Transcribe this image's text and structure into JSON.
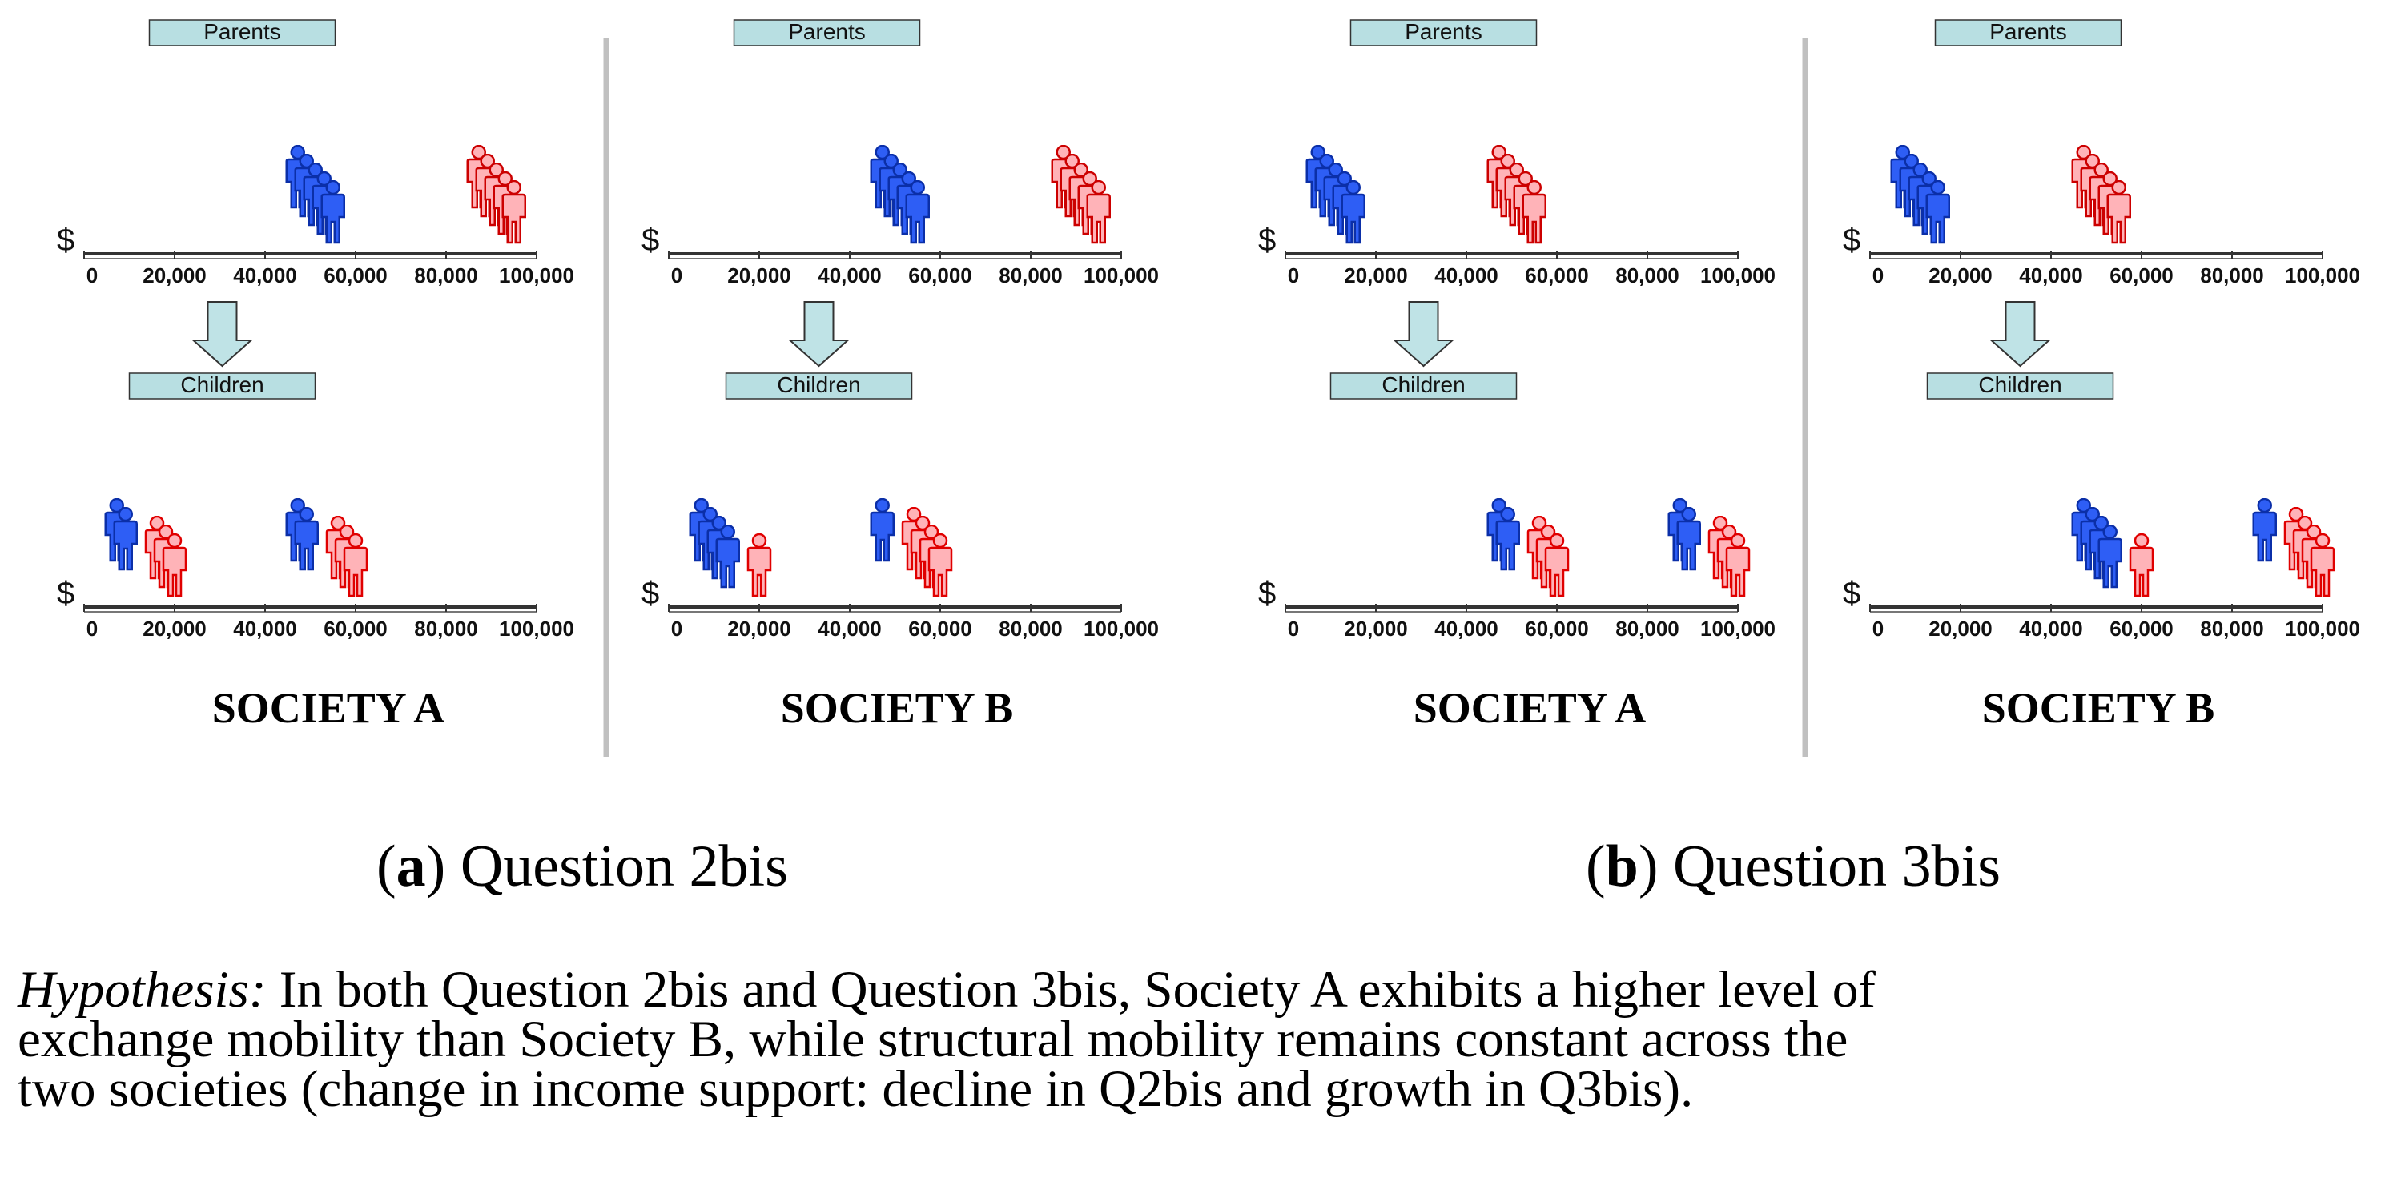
{
  "colors": {
    "parents_blue": "#1d4be6",
    "parents_blue_light": "#2e5ef5",
    "red": "#ff2a2a",
    "red_light": "#ffb3b8",
    "label_box_fill": "#b8dfe2",
    "arrow_fill": "#bfe3e6",
    "divider": "#c0c0c0"
  },
  "labels": {
    "parents": "Parents",
    "children": "Children",
    "currency": "$"
  },
  "axis_ticks": [
    "0",
    "20,000",
    "40,000",
    "60,000",
    "80,000",
    "100,000"
  ],
  "figures_per_group": 5,
  "icon_names": [
    "person-icon",
    "down-arrow-icon"
  ],
  "panels": [
    {
      "title": "SOCIETY  A",
      "parents": [
        {
          "color": "blue",
          "income": 55000
        },
        {
          "color": "red",
          "income": 95000
        }
      ],
      "children": [
        {
          "color": "blue",
          "income": 15000,
          "overlay_red": 3,
          "overlay_income": 20000
        },
        {
          "color": "blue",
          "income": 55000,
          "overlay_red": 3,
          "overlay_income": 60000
        }
      ]
    },
    {
      "title": "SOCIETY B",
      "parents": [
        {
          "color": "blue",
          "income": 55000
        },
        {
          "color": "red",
          "income": 95000
        }
      ],
      "children": [
        {
          "color": "blue",
          "income": 15000,
          "overlay_red": 1,
          "overlay_income": 20000
        },
        {
          "color": "blue",
          "income": 55000,
          "overlay_red": 4,
          "overlay_income": 60000
        }
      ]
    },
    {
      "title": "SOCIETY  A",
      "parents": [
        {
          "color": "blue",
          "income": 15000
        },
        {
          "color": "red",
          "income": 55000
        }
      ],
      "children": [
        {
          "color": "blue",
          "income": 55000,
          "overlay_red": 3,
          "overlay_income": 60000
        },
        {
          "color": "blue",
          "income": 95000,
          "overlay_red": 3,
          "overlay_income": 100000
        }
      ]
    },
    {
      "title": "SOCIETY B",
      "parents": [
        {
          "color": "blue",
          "income": 15000
        },
        {
          "color": "red",
          "income": 55000
        }
      ],
      "children": [
        {
          "color": "blue",
          "income": 55000,
          "overlay_red": 1,
          "overlay_income": 60000
        },
        {
          "color": "blue",
          "income": 95000,
          "overlay_red": 4,
          "overlay_income": 100000
        }
      ]
    }
  ],
  "captions": [
    {
      "letter": "a",
      "text": "Question 2bis"
    },
    {
      "letter": "b",
      "text": "Question 3bis"
    }
  ],
  "note": {
    "label": "Hypothesis:",
    "lines": [
      "In both Question 2bis and Question 3bis, Society A exhibits a higher level of",
      "exchange mobility than Society B, while structural mobility remains constant across the",
      "two societies (change in income support: decline in Q2bis and growth in Q3bis)."
    ]
  }
}
